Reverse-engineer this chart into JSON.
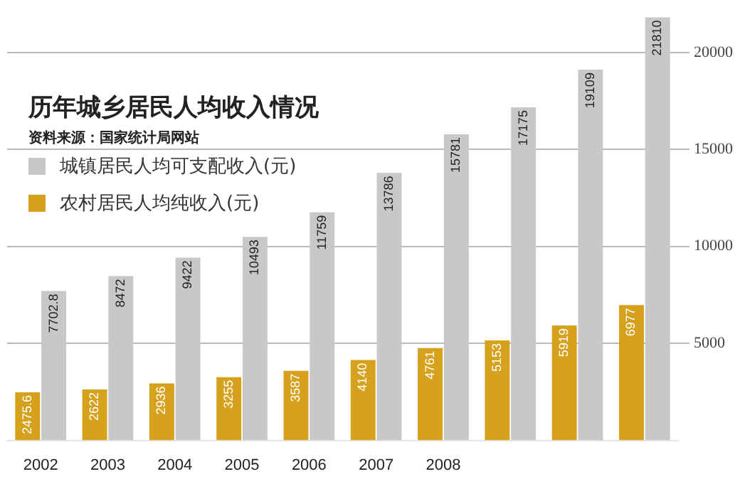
{
  "chart_data": {
    "type": "bar",
    "title": "历年城乡居民人均收入情况",
    "subtitle": "资料来源：国家统计局网站",
    "categories": [
      "2002",
      "2003",
      "2004",
      "2005",
      "2006",
      "2007",
      "2008",
      null,
      null,
      null
    ],
    "series": [
      {
        "name": "城镇居民人均可支配收入(元)",
        "color": "#c8c8c8",
        "values": [
          7702.8,
          8472,
          9422,
          10493,
          11759,
          13786,
          15781,
          17175,
          19109,
          21810
        ]
      },
      {
        "name": "农村居民人均纯收入(元)",
        "color": "#d6a21e",
        "values": [
          2475.6,
          2622,
          2936,
          3255,
          3587,
          4140,
          4761,
          5153,
          5919,
          6977
        ]
      }
    ],
    "ylim": [
      0,
      22000
    ],
    "yticks": [
      5000,
      10000,
      15000,
      20000
    ],
    "grid": "y",
    "legend": "top left",
    "data_labels": true
  }
}
